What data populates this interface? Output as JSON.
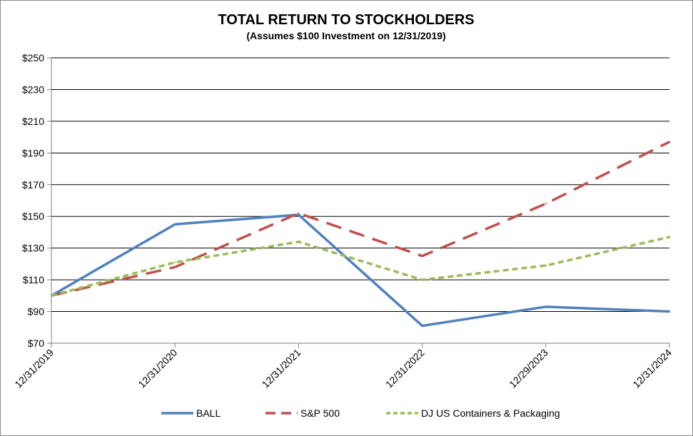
{
  "chart_data": {
    "type": "line",
    "title": "TOTAL RETURN TO STOCKHOLDERS",
    "subtitle": "(Assumes $100 Investment on 12/31/2019)",
    "categories": [
      "12/31/2019",
      "12/31/2020",
      "12/31/2021",
      "12/31/2022",
      "12/29/2023",
      "12/31/2024"
    ],
    "ylim": [
      70,
      250
    ],
    "yticks": [
      70,
      90,
      110,
      130,
      150,
      170,
      190,
      210,
      230,
      250
    ],
    "ytick_labels": [
      "$70",
      "$90",
      "$110",
      "$130",
      "$150",
      "$170",
      "$190",
      "$210",
      "$230",
      "$250"
    ],
    "grid": true,
    "legend_position": "bottom",
    "series": [
      {
        "name": "BALL",
        "values": [
          100,
          145,
          151,
          81,
          93,
          90
        ],
        "color": "#4f81bd",
        "style": "solid"
      },
      {
        "name": "S&P 500",
        "values": [
          100,
          118,
          152,
          125,
          158,
          197
        ],
        "color": "#c0504d",
        "style": "dash"
      },
      {
        "name": "DJ US Containers & Packaging",
        "values": [
          100,
          121,
          134,
          110,
          119,
          137
        ],
        "color": "#9bbb59",
        "style": "dot"
      }
    ]
  }
}
